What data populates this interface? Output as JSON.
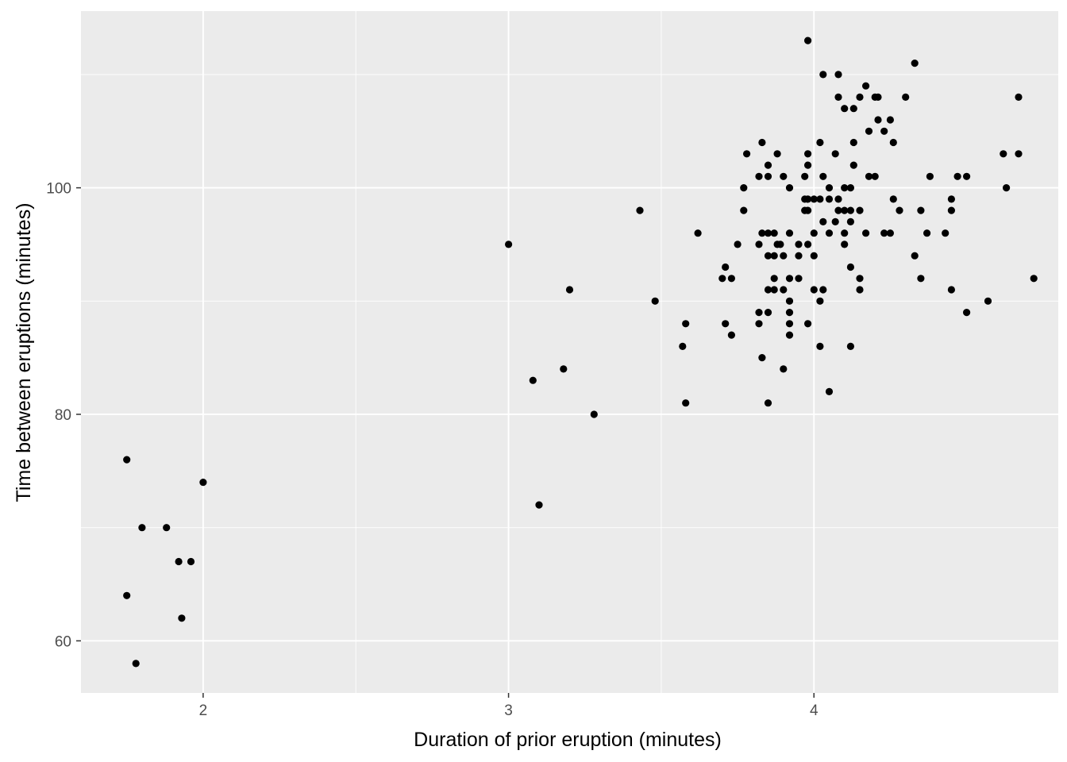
{
  "chart_data": {
    "type": "scatter",
    "title": "",
    "xlabel": "Duration of prior eruption (minutes)",
    "ylabel": "Time between eruptions (minutes)",
    "xlim": [
      1.6,
      4.8
    ],
    "ylim": [
      55.4,
      115.6
    ],
    "x_ticks": [
      2,
      3,
      4
    ],
    "y_ticks": [
      60,
      80,
      100
    ],
    "x_tick_labels": [
      "2",
      "3",
      "4"
    ],
    "y_tick_labels": [
      "60",
      "80",
      "100"
    ],
    "grid": true,
    "panel_background": "#ebebeb",
    "grid_color": "#ffffff",
    "point_color": "#000000",
    "points": [
      [
        1.75,
        76
      ],
      [
        1.75,
        64
      ],
      [
        1.78,
        58
      ],
      [
        1.8,
        70
      ],
      [
        1.88,
        70
      ],
      [
        1.92,
        67
      ],
      [
        1.93,
        62
      ],
      [
        1.96,
        67
      ],
      [
        2.0,
        74
      ],
      [
        3.0,
        95
      ],
      [
        3.08,
        83
      ],
      [
        3.1,
        72
      ],
      [
        3.18,
        84
      ],
      [
        3.2,
        91
      ],
      [
        3.28,
        80
      ],
      [
        3.43,
        98
      ],
      [
        3.48,
        90
      ],
      [
        3.57,
        86
      ],
      [
        3.58,
        88
      ],
      [
        3.58,
        81
      ],
      [
        3.62,
        96
      ],
      [
        3.7,
        92
      ],
      [
        3.71,
        93
      ],
      [
        3.71,
        88
      ],
      [
        3.73,
        92
      ],
      [
        3.73,
        87
      ],
      [
        3.75,
        95
      ],
      [
        3.77,
        100
      ],
      [
        3.77,
        98
      ],
      [
        3.78,
        103
      ],
      [
        3.82,
        101
      ],
      [
        3.82,
        95
      ],
      [
        3.82,
        89
      ],
      [
        3.82,
        88
      ],
      [
        3.83,
        104
      ],
      [
        3.83,
        96
      ],
      [
        3.83,
        85
      ],
      [
        3.85,
        102
      ],
      [
        3.85,
        101
      ],
      [
        3.85,
        96
      ],
      [
        3.85,
        94
      ],
      [
        3.85,
        91
      ],
      [
        3.85,
        89
      ],
      [
        3.85,
        81
      ],
      [
        3.87,
        96
      ],
      [
        3.87,
        94
      ],
      [
        3.87,
        92
      ],
      [
        3.87,
        91
      ],
      [
        3.88,
        95
      ],
      [
        3.88,
        103
      ],
      [
        3.89,
        95
      ],
      [
        3.9,
        94
      ],
      [
        3.9,
        91
      ],
      [
        3.9,
        84
      ],
      [
        3.9,
        101
      ],
      [
        3.92,
        100
      ],
      [
        3.92,
        96
      ],
      [
        3.92,
        92
      ],
      [
        3.92,
        90
      ],
      [
        3.92,
        89
      ],
      [
        3.92,
        88
      ],
      [
        3.92,
        87
      ],
      [
        3.95,
        95
      ],
      [
        3.95,
        94
      ],
      [
        3.95,
        92
      ],
      [
        3.97,
        101
      ],
      [
        3.97,
        99
      ],
      [
        3.97,
        98
      ],
      [
        3.98,
        113
      ],
      [
        3.98,
        103
      ],
      [
        3.98,
        102
      ],
      [
        3.98,
        99
      ],
      [
        3.98,
        98
      ],
      [
        3.98,
        95
      ],
      [
        3.98,
        88
      ],
      [
        4.0,
        94
      ],
      [
        4.0,
        96
      ],
      [
        4.0,
        91
      ],
      [
        4.0,
        99
      ],
      [
        4.02,
        104
      ],
      [
        4.02,
        99
      ],
      [
        4.02,
        90
      ],
      [
        4.02,
        86
      ],
      [
        4.03,
        110
      ],
      [
        4.03,
        101
      ],
      [
        4.03,
        97
      ],
      [
        4.03,
        91
      ],
      [
        4.05,
        100
      ],
      [
        4.05,
        99
      ],
      [
        4.05,
        96
      ],
      [
        4.05,
        82
      ],
      [
        4.07,
        103
      ],
      [
        4.07,
        97
      ],
      [
        4.08,
        110
      ],
      [
        4.08,
        108
      ],
      [
        4.08,
        99
      ],
      [
        4.08,
        98
      ],
      [
        4.1,
        107
      ],
      [
        4.1,
        100
      ],
      [
        4.1,
        98
      ],
      [
        4.1,
        96
      ],
      [
        4.1,
        95
      ],
      [
        4.12,
        100
      ],
      [
        4.12,
        98
      ],
      [
        4.12,
        97
      ],
      [
        4.12,
        93
      ],
      [
        4.12,
        86
      ],
      [
        4.13,
        102
      ],
      [
        4.13,
        107
      ],
      [
        4.13,
        104
      ],
      [
        4.15,
        108
      ],
      [
        4.15,
        98
      ],
      [
        4.15,
        92
      ],
      [
        4.15,
        91
      ],
      [
        4.17,
        109
      ],
      [
        4.17,
        96
      ],
      [
        4.18,
        105
      ],
      [
        4.18,
        101
      ],
      [
        4.2,
        108
      ],
      [
        4.2,
        101
      ],
      [
        4.21,
        108
      ],
      [
        4.21,
        106
      ],
      [
        4.23,
        105
      ],
      [
        4.23,
        96
      ],
      [
        4.25,
        106
      ],
      [
        4.25,
        96
      ],
      [
        4.26,
        104
      ],
      [
        4.26,
        99
      ],
      [
        4.28,
        98
      ],
      [
        4.3,
        108
      ],
      [
        4.33,
        111
      ],
      [
        4.33,
        94
      ],
      [
        4.35,
        98
      ],
      [
        4.35,
        92
      ],
      [
        4.37,
        96
      ],
      [
        4.38,
        101
      ],
      [
        4.43,
        96
      ],
      [
        4.45,
        99
      ],
      [
        4.45,
        98
      ],
      [
        4.45,
        91
      ],
      [
        4.47,
        101
      ],
      [
        4.5,
        101
      ],
      [
        4.5,
        89
      ],
      [
        4.57,
        90
      ],
      [
        4.62,
        103
      ],
      [
        4.63,
        100
      ],
      [
        4.67,
        108
      ],
      [
        4.67,
        103
      ],
      [
        4.72,
        92
      ]
    ]
  }
}
